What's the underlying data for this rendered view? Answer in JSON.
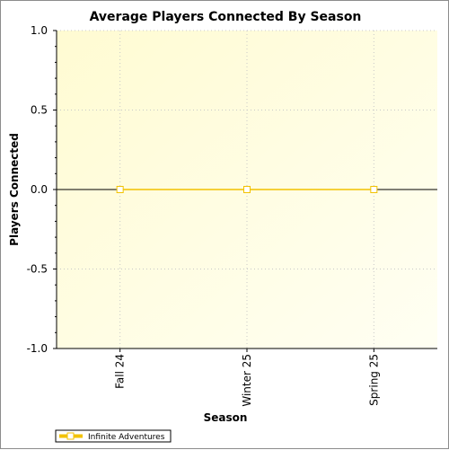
{
  "chart_data": {
    "type": "line",
    "title": "Average Players Connected By Season",
    "xlabel": "Season",
    "ylabel": "Players Connected",
    "categories": [
      "Fall 24",
      "Winter 25",
      "Spring 25"
    ],
    "series": [
      {
        "name": "Infinite Adventures",
        "values": [
          0,
          0,
          0
        ],
        "color": "#f2c200"
      }
    ],
    "ylim": [
      -1.0,
      1.0
    ],
    "yticks": [
      "1.0",
      "0.5",
      "0.0",
      "-0.5",
      "-1.0"
    ],
    "grid": true,
    "legend": "bottom-left"
  }
}
